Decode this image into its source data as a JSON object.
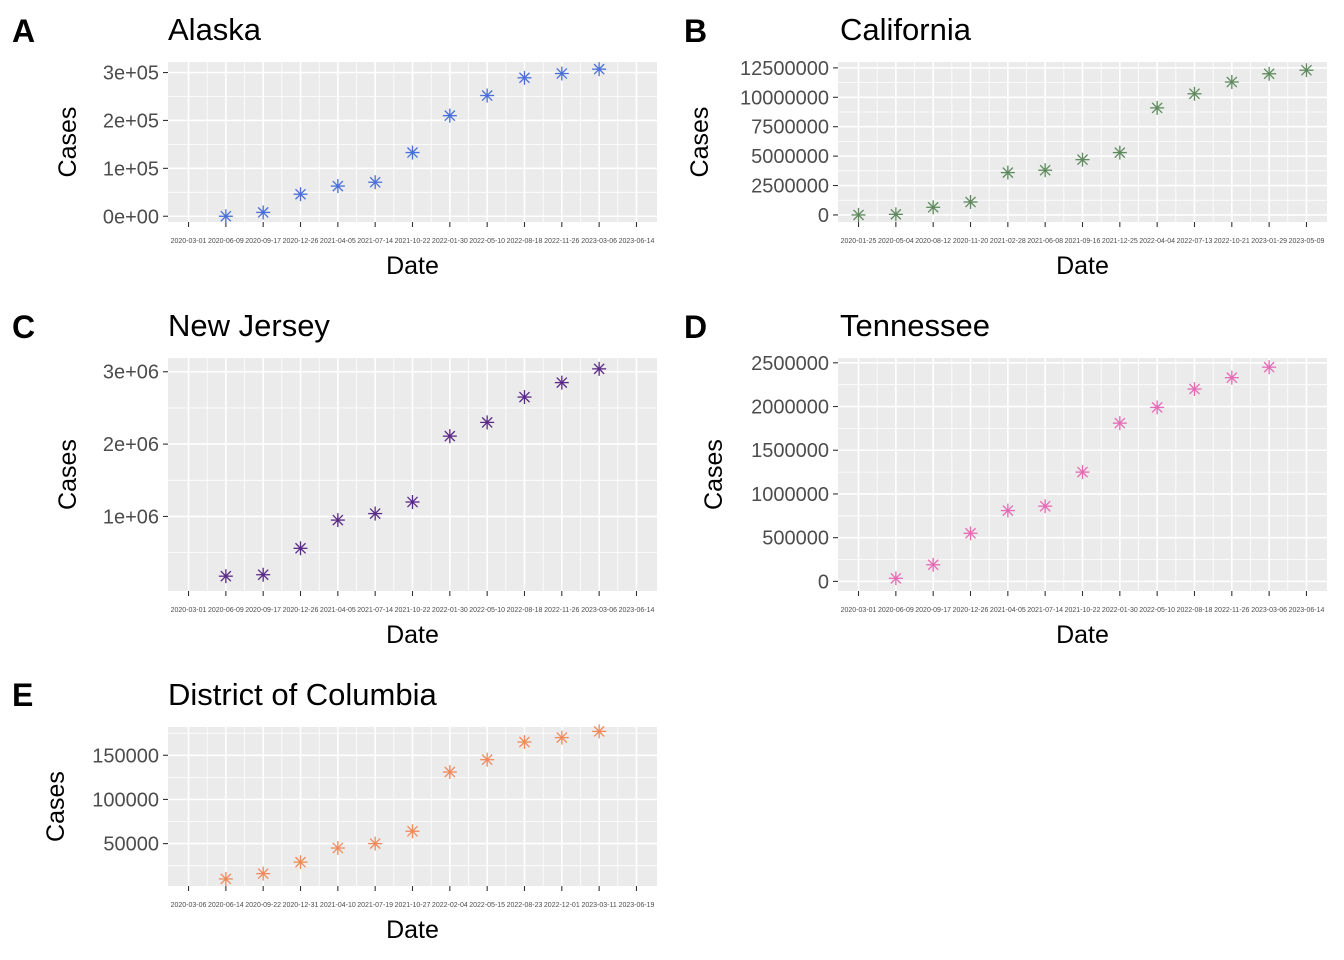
{
  "chart_data": [
    {
      "type": "scatter",
      "tag": "A",
      "title": "Alaska",
      "xlabel": "Date",
      "ylabel": "Cases",
      "color": "#4a6fd8",
      "marker": "asterisk",
      "x_ticks": [
        "2020-03-01",
        "2020-06-09",
        "2020-09-17",
        "2020-12-26",
        "2021-04-05",
        "2021-07-14",
        "2021-10-22",
        "2022-01-30",
        "2022-05-10",
        "2022-08-18",
        "2022-11-26",
        "2023-03-06",
        "2023-06-14"
      ],
      "y_ticks": [
        0,
        100000,
        200000,
        300000
      ],
      "y_tick_labels": [
        "0e+00",
        "1e+05",
        "2e+05",
        "3e+05"
      ],
      "ylim": [
        -12000,
        322000
      ],
      "x": [
        "2020-06-09",
        "2020-09-17",
        "2020-12-26",
        "2021-04-05",
        "2021-07-14",
        "2021-10-22",
        "2022-01-30",
        "2022-05-10",
        "2022-08-18",
        "2022-11-26",
        "2023-03-06"
      ],
      "y": [
        0,
        8000,
        46000,
        63000,
        71000,
        133000,
        210000,
        252000,
        289000,
        298000,
        307000
      ]
    },
    {
      "type": "scatter",
      "tag": "B",
      "title": "California",
      "xlabel": "Date",
      "ylabel": "Cases",
      "color": "#5e8a5e",
      "marker": "asterisk",
      "x_ticks": [
        "2020-01-25",
        "2020-05-04",
        "2020-08-12",
        "2020-11-20",
        "2021-02-28",
        "2021-06-08",
        "2021-09-16",
        "2021-12-25",
        "2022-04-04",
        "2022-07-13",
        "2022-10-21",
        "2023-01-29",
        "2023-05-09"
      ],
      "y_ticks": [
        0,
        2500000,
        5000000,
        7500000,
        10000000,
        12500000
      ],
      "y_tick_labels": [
        "0",
        "2500000",
        "5000000",
        "7500000",
        "10000000",
        "12500000"
      ],
      "ylim": [
        -600000,
        13000000
      ],
      "x": [
        "2020-01-25",
        "2020-05-04",
        "2020-08-12",
        "2020-11-20",
        "2021-02-28",
        "2021-06-08",
        "2021-09-16",
        "2021-12-25",
        "2022-04-04",
        "2022-07-13",
        "2022-10-21",
        "2023-01-29",
        "2023-05-09"
      ],
      "y": [
        0,
        50000,
        650000,
        1100000,
        3600000,
        3800000,
        4700000,
        5300000,
        9100000,
        10300000,
        11300000,
        12000000,
        12300000
      ]
    },
    {
      "type": "scatter",
      "tag": "C",
      "title": "New Jersey",
      "xlabel": "Date",
      "ylabel": "Cases",
      "color": "#5b2a86",
      "marker": "asterisk",
      "x_ticks": [
        "2020-03-01",
        "2020-06-09",
        "2020-09-17",
        "2020-12-26",
        "2021-04-05",
        "2021-07-14",
        "2021-10-22",
        "2022-01-30",
        "2022-05-10",
        "2022-08-18",
        "2022-11-26",
        "2023-03-06",
        "2023-06-14"
      ],
      "y_ticks": [
        1000000,
        2000000,
        3000000
      ],
      "y_tick_labels": [
        "1e+06",
        "2e+06",
        "3e+06"
      ],
      "ylim": [
        -30000,
        3190000
      ],
      "x": [
        "2020-06-09",
        "2020-09-17",
        "2020-12-26",
        "2021-04-05",
        "2021-07-14",
        "2021-10-22",
        "2022-01-30",
        "2022-05-10",
        "2022-08-18",
        "2022-11-26",
        "2023-03-06"
      ],
      "y": [
        175000,
        195000,
        560000,
        950000,
        1040000,
        1200000,
        2110000,
        2300000,
        2650000,
        2850000,
        3040000
      ]
    },
    {
      "type": "scatter",
      "tag": "D",
      "title": "Tennessee",
      "xlabel": "Date",
      "ylabel": "Cases",
      "color": "#e56bb5",
      "marker": "asterisk",
      "x_ticks": [
        "2020-03-01",
        "2020-06-09",
        "2020-09-17",
        "2020-12-26",
        "2021-04-05",
        "2021-07-14",
        "2021-10-22",
        "2022-01-30",
        "2022-05-10",
        "2022-08-18",
        "2022-11-26",
        "2023-03-06",
        "2023-06-14"
      ],
      "y_ticks": [
        0,
        500000,
        1000000,
        1500000,
        2000000,
        2500000
      ],
      "y_tick_labels": [
        "0",
        "500000",
        "1000000",
        "1500000",
        "2000000",
        "2500000"
      ],
      "ylim": [
        -110000,
        2555000
      ],
      "x": [
        "2020-06-09",
        "2020-09-17",
        "2020-12-26",
        "2021-04-05",
        "2021-07-14",
        "2021-10-22",
        "2022-01-30",
        "2022-05-10",
        "2022-08-18",
        "2022-11-26",
        "2023-03-06"
      ],
      "y": [
        35000,
        190000,
        550000,
        810000,
        860000,
        1250000,
        1810000,
        1990000,
        2200000,
        2330000,
        2450000
      ]
    },
    {
      "type": "scatter",
      "tag": "E",
      "title": "District of Columbia",
      "xlabel": "Date",
      "ylabel": "Cases",
      "color": "#f08a5d",
      "marker": "asterisk",
      "x_ticks": [
        "2020-03-06",
        "2020-06-14",
        "2020-09-22",
        "2020-12-31",
        "2021-04-10",
        "2021-07-19",
        "2021-10-27",
        "2022-02-04",
        "2022-05-15",
        "2022-08-23",
        "2022-12-01",
        "2023-03-11",
        "2023-06-19"
      ],
      "y_ticks": [
        50000,
        100000,
        150000
      ],
      "y_tick_labels": [
        "50000",
        "100000",
        "150000"
      ],
      "ylim": [
        2000,
        182000
      ],
      "x": [
        "2020-06-14",
        "2020-09-22",
        "2020-12-31",
        "2021-04-10",
        "2021-07-19",
        "2021-10-27",
        "2022-02-04",
        "2022-05-15",
        "2022-08-23",
        "2022-12-01",
        "2023-03-11"
      ],
      "y": [
        10000,
        16000,
        29000,
        45000,
        50000,
        64000,
        131000,
        145000,
        165000,
        170000,
        177000
      ]
    }
  ]
}
